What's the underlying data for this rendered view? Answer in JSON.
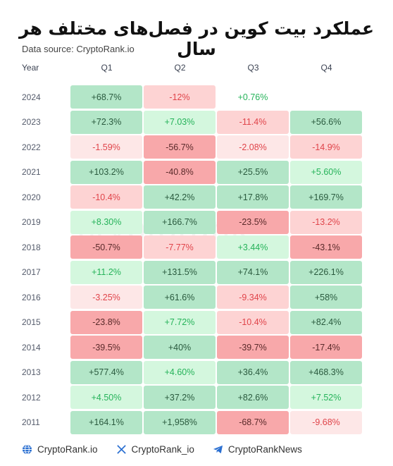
{
  "title": "عملکرد بیت کوین در فصل‌های مختلف هر سال",
  "source": "Data source: CryptoRank.io",
  "watermark": "cryptorank",
  "colors": {
    "strong_pos_bg": "#b3e6c8",
    "strong_pos_fg": "#2a5a3e",
    "weak_pos_bg": "#d4f7de",
    "weak_pos_fg": "#26b35a",
    "faint_pos_bg": "#ecfbef",
    "faint_pos_fg": "#26b35a",
    "strong_neg_bg": "#f8a8aa",
    "strong_neg_fg": "#5a2a2a",
    "weak_neg_bg": "#fdd3d3",
    "weak_neg_fg": "#e0444a",
    "faint_neg_bg": "#fde7e7",
    "faint_neg_fg": "#e0444a",
    "empty_bg": "#ffffff"
  },
  "chart_data": {
    "type": "table",
    "columns": [
      "Year",
      "Q1",
      "Q2",
      "Q3",
      "Q4"
    ],
    "rows": [
      {
        "year": "2024",
        "values": [
          "+68.7%",
          "-12%",
          "+0.76%",
          ""
        ],
        "levels": [
          "sp",
          "wn",
          "none",
          "none"
        ]
      },
      {
        "year": "2023",
        "values": [
          "+72.3%",
          "+7.03%",
          "-11.4%",
          "+56.6%"
        ],
        "levels": [
          "sp",
          "wp",
          "wn",
          "sp"
        ]
      },
      {
        "year": "2022",
        "values": [
          "-1.59%",
          "-56.7%",
          "-2.08%",
          "-14.9%"
        ],
        "levels": [
          "fn",
          "sn",
          "fn",
          "wn"
        ]
      },
      {
        "year": "2021",
        "values": [
          "+103.2%",
          "-40.8%",
          "+25.5%",
          "+5.60%"
        ],
        "levels": [
          "sp",
          "sn",
          "sp",
          "wp"
        ]
      },
      {
        "year": "2020",
        "values": [
          "-10.4%",
          "+42.2%",
          "+17.8%",
          "+169.7%"
        ],
        "levels": [
          "wn",
          "sp",
          "sp",
          "sp"
        ]
      },
      {
        "year": "2019",
        "values": [
          "+8.30%",
          "+166.7%",
          "-23.5%",
          "-13.2%"
        ],
        "levels": [
          "wp",
          "sp",
          "sn",
          "wn"
        ]
      },
      {
        "year": "2018",
        "values": [
          "-50.7%",
          "-7.77%",
          "+3.44%",
          "-43.1%"
        ],
        "levels": [
          "sn",
          "wn",
          "wp",
          "sn"
        ]
      },
      {
        "year": "2017",
        "values": [
          "+11.2%",
          "+131.5%",
          "+74.1%",
          "+226.1%"
        ],
        "levels": [
          "wp",
          "sp",
          "sp",
          "sp"
        ]
      },
      {
        "year": "2016",
        "values": [
          "-3.25%",
          "+61.6%",
          "-9.34%",
          "+58%"
        ],
        "levels": [
          "fn",
          "sp",
          "wn",
          "sp"
        ]
      },
      {
        "year": "2015",
        "values": [
          "-23.8%",
          "+7.72%",
          "-10.4%",
          "+82.4%"
        ],
        "levels": [
          "sn",
          "wp",
          "wn",
          "sp"
        ]
      },
      {
        "year": "2014",
        "values": [
          "-39.5%",
          "+40%",
          "-39.7%",
          "-17.4%"
        ],
        "levels": [
          "sn",
          "sp",
          "sn",
          "sn"
        ]
      },
      {
        "year": "2013",
        "values": [
          "+577.4%",
          "+4.60%",
          "+36.4%",
          "+468.3%"
        ],
        "levels": [
          "sp",
          "wp",
          "sp",
          "sp"
        ]
      },
      {
        "year": "2012",
        "values": [
          "+4.50%",
          "+37.2%",
          "+82.6%",
          "+7.52%"
        ],
        "levels": [
          "wp",
          "sp",
          "sp",
          "wp"
        ]
      },
      {
        "year": "2011",
        "values": [
          "+164.1%",
          "+1,958%",
          "-68.7%",
          "-9.68%"
        ],
        "levels": [
          "sp",
          "sp",
          "sn",
          "fn"
        ]
      }
    ]
  },
  "footer": {
    "website": {
      "label": "CryptoRank.io",
      "icon": "globe-icon"
    },
    "twitter": {
      "label": "CryptoRank_io",
      "icon": "x-logo-icon"
    },
    "telegram": {
      "label": "CryptoRankNews",
      "icon": "telegram-icon"
    }
  }
}
